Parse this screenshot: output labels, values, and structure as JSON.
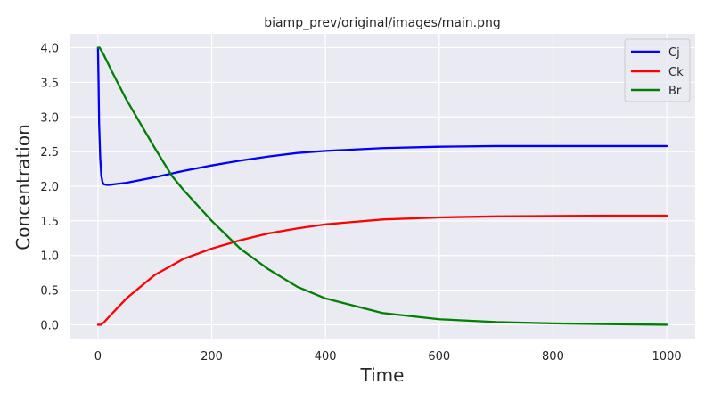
{
  "chart_data": {
    "type": "line",
    "title": "biamp_prev/original/images/main.png",
    "xlabel": "Time",
    "ylabel": "Concentration",
    "xlim": [
      -50,
      1050
    ],
    "ylim": [
      -0.2,
      4.2
    ],
    "xticks": [
      0,
      200,
      400,
      600,
      800,
      1000
    ],
    "yticks": [
      0.0,
      0.5,
      1.0,
      1.5,
      2.0,
      2.5,
      3.0,
      3.5,
      4.0
    ],
    "xtick_labels": [
      "0",
      "200",
      "400",
      "600",
      "800",
      "1000"
    ],
    "ytick_labels": [
      "0.0",
      "0.5",
      "1.0",
      "1.5",
      "2.0",
      "2.5",
      "3.0",
      "3.5",
      "4.0"
    ],
    "grid": true,
    "legend": "top-right",
    "series": [
      {
        "name": "Cj",
        "color": "#0000ff",
        "x": [
          0,
          1,
          2,
          4,
          6,
          8,
          10,
          15,
          20,
          30,
          50,
          100,
          150,
          200,
          250,
          300,
          350,
          400,
          500,
          600,
          700,
          800,
          900,
          1000
        ],
        "y": [
          4.0,
          3.5,
          2.9,
          2.4,
          2.15,
          2.06,
          2.03,
          2.02,
          2.02,
          2.03,
          2.05,
          2.13,
          2.22,
          2.3,
          2.37,
          2.43,
          2.48,
          2.51,
          2.55,
          2.57,
          2.58,
          2.58,
          2.58,
          2.58
        ]
      },
      {
        "name": "Ck",
        "color": "#ff0000",
        "x": [
          0,
          5,
          10,
          20,
          50,
          100,
          150,
          200,
          250,
          300,
          350,
          400,
          500,
          600,
          700,
          800,
          900,
          1000
        ],
        "y": [
          0.0,
          0.0,
          0.03,
          0.12,
          0.38,
          0.72,
          0.95,
          1.1,
          1.22,
          1.32,
          1.39,
          1.45,
          1.52,
          1.55,
          1.565,
          1.57,
          1.575,
          1.575
        ]
      },
      {
        "name": "Br",
        "color": "#008000",
        "x": [
          0,
          3,
          10,
          25,
          50,
          100,
          130,
          150,
          200,
          250,
          300,
          350,
          400,
          500,
          600,
          700,
          800,
          900,
          1000
        ],
        "y": [
          4.0,
          4.0,
          3.9,
          3.65,
          3.25,
          2.55,
          2.15,
          1.95,
          1.5,
          1.1,
          0.8,
          0.55,
          0.38,
          0.17,
          0.08,
          0.04,
          0.02,
          0.01,
          0.0
        ]
      }
    ]
  }
}
